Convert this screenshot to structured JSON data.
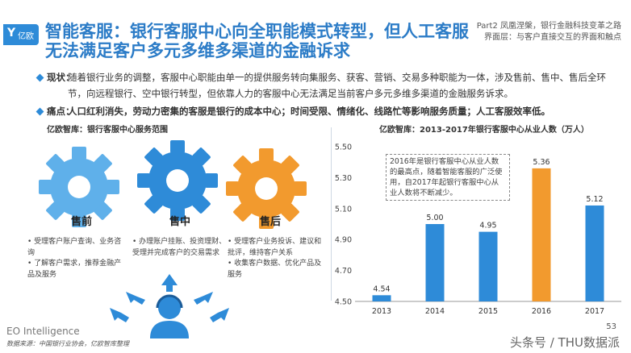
{
  "header": {
    "logo_text": "亿欧",
    "title": "智能客服：银行客服中心向全职能模式转型，但人工客服无法满足客户多元多维多渠道的金融诉求",
    "part_line1": "Part2 凤凰涅槃，银行金融科技变革之路",
    "part_line2": "界面层：与客户直接交互的界面和触点"
  },
  "bullets": [
    {
      "label": "现状：",
      "text": "随着银行业务的调整，客服中心职能由单一的提供服务转向集服务、获客、营销、交易多种职能为一体，涉及售前、售中、售后全环节，向远程银行、空中银行转型，但依靠人力的客服中心无法满足当前客户多元多维多渠道的金融服务诉求。"
    },
    {
      "label": "痛点：",
      "text": "人口红利消失，劳动力密集的客服是银行的成本中心；时间受限、情绪化、线路忙等影响服务质量；人工客服效率低。"
    }
  ],
  "left_section": {
    "heading": "亿欧智库：银行客服中心服务范围",
    "stages": [
      {
        "name": "售前",
        "items": [
          "受理客户账户查询、业务咨询",
          "了解客户需求，推荐金融产品及服务"
        ]
      },
      {
        "name": "售中",
        "items": [
          "办理账户挂账、投资理财、受理并完成客户的交易需求"
        ]
      },
      {
        "name": "售后",
        "items": [
          "受理客户业务投诉、建议和批评，维持客户关系",
          "收集客户数据、优化产品及服务"
        ]
      }
    ],
    "colors": {
      "gear_blue": "#2e8bd8",
      "gear_orange": "#f29a2e",
      "gear_light": "#5fb0ea"
    }
  },
  "right_section": {
    "heading": "亿欧智库：2013-2017年银行客服中心从业人数（万人）",
    "callout": "2016年是银行客服中心从业人数的最高点，随着智能客服的广泛使用，自2017年起银行客服中心从业人数将不断减少。"
  },
  "chart_data": {
    "type": "bar",
    "title": "亿欧智库：2013-2017年银行客服中心从业人数（万人）",
    "categories": [
      "2013",
      "2014",
      "2015",
      "2016",
      "2017"
    ],
    "values": [
      4.54,
      5.0,
      4.95,
      5.36,
      5.12
    ],
    "value_labels": [
      "4.54",
      "5.00",
      "4.95",
      "5.36",
      "5.12"
    ],
    "ylim": [
      4.5,
      5.5
    ],
    "yticks": [
      "4.50",
      "4.70",
      "4.90",
      "5.10",
      "5.30",
      "5.50"
    ],
    "highlight_index": 3,
    "bar_color": "#2e8bd8",
    "highlight_color": "#f29a2e",
    "grid": false
  },
  "footer": {
    "brand": "EO Intelligence",
    "source": "数据来源：中国银行业协会，亿欧智库整理",
    "page": "53",
    "watermark": "头条号 / THU数据派"
  }
}
